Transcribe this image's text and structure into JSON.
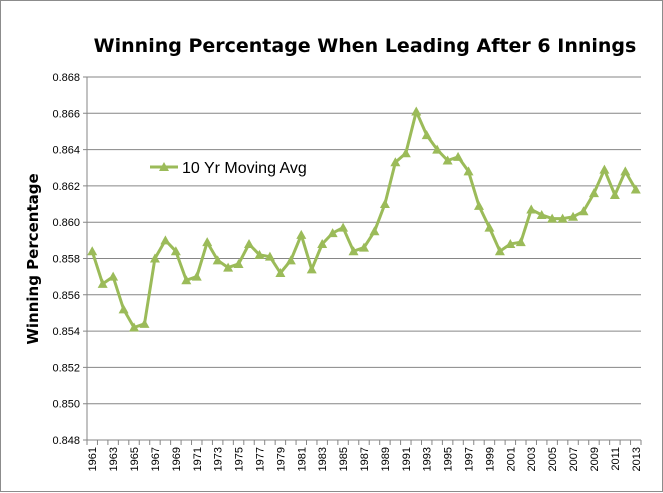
{
  "chart_data": {
    "type": "line",
    "title": "Winning Percentage When Leading After 6 Innings",
    "xlabel": "",
    "ylabel": "Winning Percentage",
    "ylim": [
      0.848,
      0.868
    ],
    "y_ticks": [
      "0.848",
      "0.850",
      "0.852",
      "0.854",
      "0.856",
      "0.858",
      "0.860",
      "0.862",
      "0.864",
      "0.866",
      "0.868"
    ],
    "x_tick_labels": [
      "1961",
      "1963",
      "1965",
      "1967",
      "1969",
      "1971",
      "1973",
      "1975",
      "1977",
      "1979",
      "1981",
      "1983",
      "1985",
      "1987",
      "1989",
      "1991",
      "1993",
      "1995",
      "1997",
      "1999",
      "2001",
      "2003",
      "2005",
      "2007",
      "2009",
      "2011",
      "2013"
    ],
    "grid": true,
    "legend_position": "upper-left",
    "series": [
      {
        "name": "10 Yr Moving Avg",
        "color": "#9bbb59",
        "x": [
          1961,
          1962,
          1963,
          1964,
          1965,
          1966,
          1967,
          1968,
          1969,
          1970,
          1971,
          1972,
          1973,
          1974,
          1975,
          1976,
          1977,
          1978,
          1979,
          1980,
          1981,
          1982,
          1983,
          1984,
          1985,
          1986,
          1987,
          1988,
          1989,
          1990,
          1991,
          1992,
          1993,
          1994,
          1995,
          1996,
          1997,
          1998,
          1999,
          2000,
          2001,
          2002,
          2003,
          2004,
          2005,
          2006,
          2007,
          2008,
          2009,
          2010,
          2011,
          2012,
          2013
        ],
        "values": [
          0.8584,
          0.8566,
          0.857,
          0.8552,
          0.8542,
          0.8544,
          0.858,
          0.859,
          0.8584,
          0.8568,
          0.857,
          0.8589,
          0.8579,
          0.8575,
          0.8577,
          0.8588,
          0.8582,
          0.8581,
          0.8572,
          0.8579,
          0.8593,
          0.8574,
          0.8588,
          0.8594,
          0.8597,
          0.8584,
          0.8586,
          0.8595,
          0.861,
          0.8633,
          0.8638,
          0.8661,
          0.8648,
          0.864,
          0.8634,
          0.8636,
          0.8628,
          0.8609,
          0.8597,
          0.8584,
          0.8588,
          0.8589,
          0.8607,
          0.8604,
          0.8602,
          0.8602,
          0.8603,
          0.8606,
          0.8616,
          0.8629,
          0.8615,
          0.8628,
          0.8618
        ]
      }
    ]
  }
}
